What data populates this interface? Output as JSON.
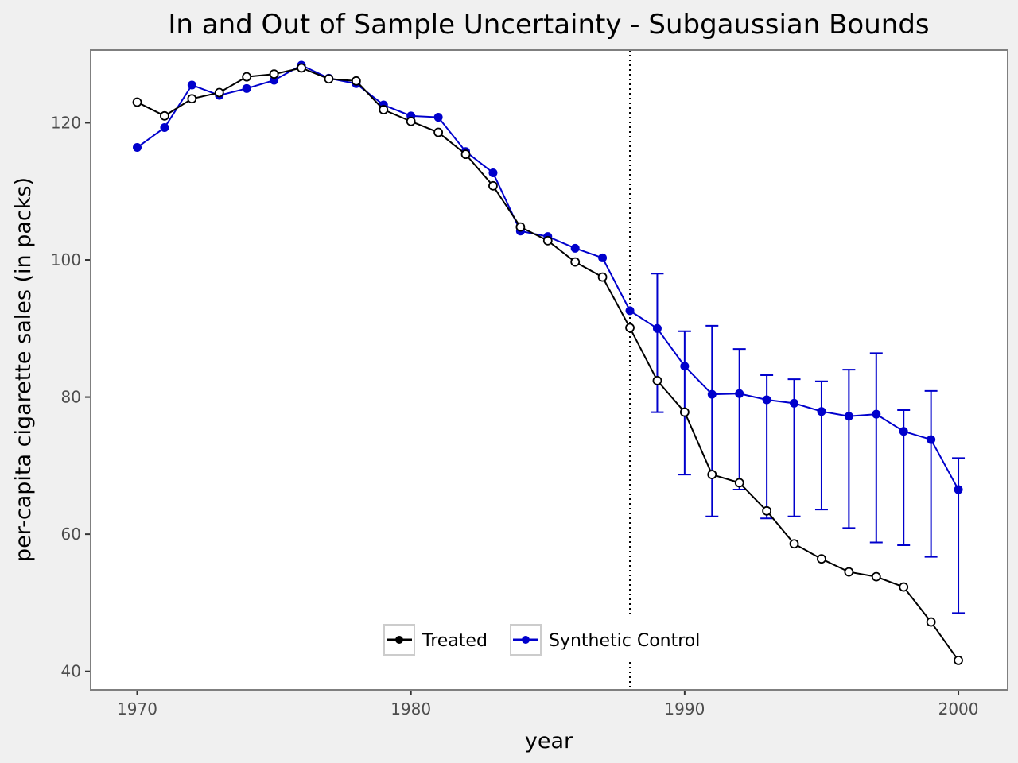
{
  "chart_data": {
    "type": "line",
    "title": "In and Out of Sample Uncertainty - Subgaussian Bounds",
    "xlabel": "year",
    "ylabel": "per-capita cigarette sales (in packs)",
    "xlim": [
      1968.3,
      2001.8
    ],
    "ylim": [
      37.3,
      130.6
    ],
    "xticks": [
      1970,
      1980,
      1990,
      2000
    ],
    "yticks": [
      40,
      60,
      80,
      100,
      120
    ],
    "grid": false,
    "legend_position": "bottom-center",
    "vline": {
      "x": 1988,
      "style": "dotted"
    },
    "x": [
      1970,
      1971,
      1972,
      1973,
      1974,
      1975,
      1976,
      1977,
      1978,
      1979,
      1980,
      1981,
      1982,
      1983,
      1984,
      1985,
      1986,
      1987,
      1988,
      1989,
      1990,
      1991,
      1992,
      1993,
      1994,
      1995,
      1996,
      1997,
      1998,
      1999,
      2000
    ],
    "series": [
      {
        "name": "Treated",
        "color": "#000000",
        "marker": "open-circle",
        "values": [
          123.0,
          121.0,
          123.5,
          124.4,
          126.7,
          127.1,
          128.0,
          126.4,
          126.1,
          121.9,
          120.2,
          118.6,
          115.4,
          110.8,
          104.8,
          102.8,
          99.7,
          97.5,
          90.1,
          82.4,
          77.8,
          68.7,
          67.5,
          63.4,
          58.6,
          56.4,
          54.5,
          53.8,
          52.3,
          47.2,
          41.6
        ]
      },
      {
        "name": "Synthetic Control",
        "color": "#0000cc",
        "marker": "filled-circle",
        "values": [
          116.4,
          119.3,
          125.5,
          124.0,
          125.0,
          126.2,
          128.4,
          126.5,
          125.7,
          122.6,
          121.0,
          120.8,
          115.8,
          112.7,
          104.2,
          103.4,
          101.7,
          100.3,
          92.6,
          90.0,
          84.5,
          80.4,
          80.5,
          79.6,
          79.1,
          77.9,
          77.2,
          77.5,
          75.0,
          73.8,
          66.5
        ],
        "error_bars": {
          "x": [
            1989,
            1990,
            1991,
            1992,
            1993,
            1994,
            1995,
            1996,
            1997,
            1998,
            1999,
            2000
          ],
          "lower": [
            77.8,
            68.7,
            62.6,
            66.5,
            62.3,
            62.6,
            63.6,
            60.9,
            58.8,
            58.4,
            56.7,
            48.5
          ],
          "upper": [
            98.0,
            89.6,
            90.4,
            87.0,
            83.2,
            82.6,
            82.3,
            84.0,
            86.4,
            78.1,
            80.9,
            71.1
          ]
        }
      }
    ]
  },
  "colors": {
    "page_background": "#f0f0f0",
    "panel_background": "#ffffff",
    "panel_border": "#7f7f7f",
    "tick_label": "#4d4d4d",
    "treated": "#000000",
    "synthetic": "#0000cc"
  }
}
